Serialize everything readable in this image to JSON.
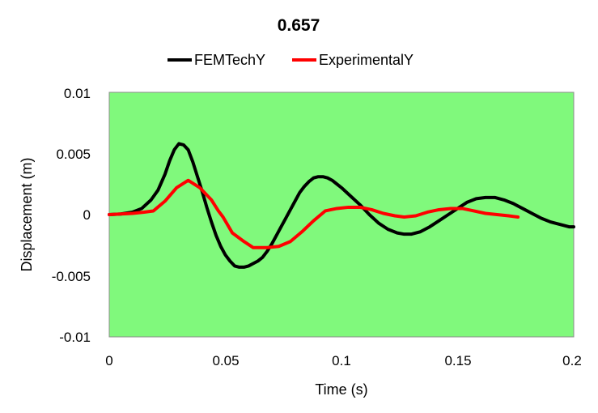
{
  "chart_data": {
    "type": "line",
    "title": "0.657",
    "xlabel": "Time (s)",
    "ylabel": "Displacement (m)",
    "xlim": [
      0,
      0.2
    ],
    "ylim": [
      -0.01,
      0.01
    ],
    "x_ticks": [
      "0",
      "0.05",
      "0.1",
      "0.15",
      "0.2"
    ],
    "y_ticks": [
      "0.01",
      "0.005",
      "0",
      "-0.005",
      "-0.01"
    ],
    "grid": false,
    "legend_position": "top",
    "plot_background": "#80f97c",
    "series": [
      {
        "name": "FEMTechY",
        "color": "#000000",
        "x": [
          0,
          0.005,
          0.01,
          0.014,
          0.018,
          0.021,
          0.024,
          0.026,
          0.028,
          0.03,
          0.032,
          0.034,
          0.036,
          0.038,
          0.04,
          0.042,
          0.044,
          0.046,
          0.048,
          0.05,
          0.052,
          0.054,
          0.056,
          0.058,
          0.06,
          0.062,
          0.064,
          0.066,
          0.068,
          0.07,
          0.072,
          0.074,
          0.076,
          0.078,
          0.08,
          0.082,
          0.084,
          0.086,
          0.088,
          0.09,
          0.092,
          0.094,
          0.096,
          0.098,
          0.1,
          0.104,
          0.108,
          0.112,
          0.116,
          0.12,
          0.124,
          0.127,
          0.13,
          0.134,
          0.138,
          0.142,
          0.146,
          0.15,
          0.154,
          0.158,
          0.162,
          0.166,
          0.17,
          0.174,
          0.178,
          0.182,
          0.186,
          0.19,
          0.194,
          0.198,
          0.2
        ],
        "y": [
          0,
          5e-05,
          0.0002,
          0.0005,
          0.0012,
          0.002,
          0.0033,
          0.0044,
          0.0053,
          0.0058,
          0.0057,
          0.0053,
          0.0043,
          0.0031,
          0.0019,
          0.0006,
          -0.0006,
          -0.0017,
          -0.0026,
          -0.0033,
          -0.0038,
          -0.0042,
          -0.0043,
          -0.0043,
          -0.0042,
          -0.004,
          -0.0038,
          -0.0035,
          -0.003,
          -0.0024,
          -0.0017,
          -0.001,
          -0.0003,
          0.0004,
          0.0011,
          0.0018,
          0.0023,
          0.0027,
          0.003,
          0.0031,
          0.0031,
          0.003,
          0.0028,
          0.0025,
          0.0022,
          0.0015,
          0.0008,
          0.0,
          -0.0007,
          -0.0012,
          -0.0015,
          -0.0016,
          -0.0016,
          -0.0014,
          -0.001,
          -0.0005,
          0.0,
          0.0005,
          0.001,
          0.0013,
          0.0014,
          0.0014,
          0.0012,
          0.0009,
          0.0005,
          0.0001,
          -0.0003,
          -0.0006,
          -0.0008,
          -0.001,
          -0.001
        ]
      },
      {
        "name": "ExperimentalY",
        "color": "#ff0000",
        "x": [
          0,
          0.005,
          0.01,
          0.015,
          0.019,
          0.024,
          0.029,
          0.034,
          0.039,
          0.044,
          0.047,
          0.049,
          0.053,
          0.058,
          0.062,
          0.068,
          0.073,
          0.078,
          0.083,
          0.088,
          0.093,
          0.098,
          0.103,
          0.108,
          0.113,
          0.118,
          0.123,
          0.127,
          0.132,
          0.137,
          0.142,
          0.147,
          0.152,
          0.157,
          0.162,
          0.167,
          0.172,
          0.176
        ],
        "y": [
          0,
          5e-05,
          0.0001,
          0.0002,
          0.0003,
          0.0011,
          0.0022,
          0.0028,
          0.0022,
          0.0012,
          0.0003,
          -0.0002,
          -0.0015,
          -0.0022,
          -0.0027,
          -0.0027,
          -0.0026,
          -0.0022,
          -0.0014,
          -0.0005,
          0.0003,
          0.0005,
          0.0006,
          0.0006,
          0.0004,
          0.0001,
          -0.0001,
          -0.0002,
          -0.0001,
          0.0002,
          0.0004,
          0.0005,
          0.0005,
          0.0003,
          0.0001,
          -0.0,
          -0.0001,
          -0.0002
        ]
      }
    ]
  }
}
